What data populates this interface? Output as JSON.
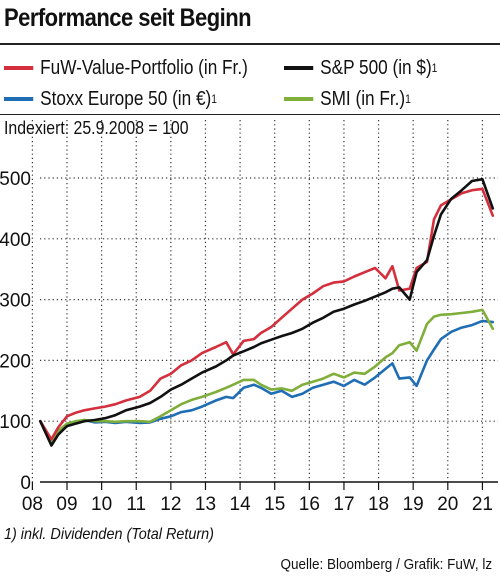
{
  "chart_data": {
    "type": "line",
    "title": "Performance seit Beginn",
    "subtitle": "Indexiert: 25.9.2008 = 100",
    "x_tick_labels": [
      "08",
      "09",
      "10",
      "11",
      "12",
      "13",
      "14",
      "15",
      "16",
      "17",
      "18",
      "19",
      "20",
      "21"
    ],
    "x_ticks": [
      2008.5,
      2009.5,
      2010.5,
      2011.5,
      2012.5,
      2013.5,
      2014.5,
      2015.5,
      2016.5,
      2017.5,
      2018.5,
      2019.5,
      2020.5,
      2021.5
    ],
    "xlim": [
      2008.72,
      2021.95
    ],
    "ylim": [
      0,
      500
    ],
    "y_ticks": [
      0,
      100,
      200,
      300,
      400,
      500
    ],
    "grid": "dotted",
    "footnote": "1) inkl. Dividenden (Total Return)",
    "source": "Quelle: Bloomberg / Grafik: FuW, lz",
    "series": [
      {
        "name": "Stoxx Europe 50 (in €)",
        "sup": "1",
        "color": "#1f6db5",
        "x": [
          2008.73,
          2009.05,
          2009.25,
          2009.5,
          2009.75,
          2010.0,
          2010.3,
          2010.6,
          2010.9,
          2011.2,
          2011.6,
          2011.9,
          2012.2,
          2012.5,
          2012.8,
          2013.1,
          2013.4,
          2013.8,
          2014.1,
          2014.3,
          2014.6,
          2014.9,
          2015.1,
          2015.4,
          2015.7,
          2016.0,
          2016.3,
          2016.6,
          2016.9,
          2017.2,
          2017.5,
          2017.8,
          2018.1,
          2018.4,
          2018.7,
          2018.9,
          2019.1,
          2019.4,
          2019.6,
          2019.9,
          2020.1,
          2020.3,
          2020.6,
          2020.9,
          2021.2,
          2021.5,
          2021.8
        ],
        "y": [
          100,
          62,
          82,
          95,
          99,
          102,
          98,
          99,
          97,
          99,
          97,
          98,
          104,
          108,
          115,
          118,
          124,
          134,
          140,
          138,
          155,
          160,
          155,
          145,
          150,
          140,
          145,
          155,
          160,
          165,
          158,
          168,
          160,
          172,
          186,
          195,
          170,
          172,
          158,
          200,
          218,
          235,
          247,
          254,
          258,
          265,
          263
        ]
      },
      {
        "name": "SMI (in Fr.)",
        "sup": "1",
        "color": "#7fae3a",
        "x": [
          2008.73,
          2009.05,
          2009.25,
          2009.5,
          2009.75,
          2010.0,
          2010.3,
          2010.6,
          2010.9,
          2011.2,
          2011.6,
          2011.9,
          2012.2,
          2012.5,
          2012.8,
          2013.1,
          2013.4,
          2013.8,
          2014.1,
          2014.3,
          2014.6,
          2014.9,
          2015.1,
          2015.4,
          2015.7,
          2016.0,
          2016.3,
          2016.6,
          2016.9,
          2017.2,
          2017.5,
          2017.8,
          2018.1,
          2018.4,
          2018.7,
          2018.9,
          2019.1,
          2019.4,
          2019.6,
          2019.9,
          2020.1,
          2020.3,
          2020.6,
          2020.9,
          2021.2,
          2021.5,
          2021.8
        ],
        "y": [
          100,
          68,
          84,
          96,
          100,
          102,
          100,
          100,
          99,
          100,
          100,
          99,
          108,
          118,
          128,
          135,
          140,
          148,
          155,
          160,
          168,
          168,
          160,
          152,
          154,
          150,
          160,
          165,
          170,
          178,
          172,
          180,
          178,
          190,
          205,
          212,
          225,
          230,
          216,
          260,
          272,
          275,
          276,
          278,
          280,
          283,
          252
        ]
      },
      {
        "name": "FuW-Value-Portfolio (in Fr.)",
        "sup": "",
        "color": "#d32f3c",
        "x": [
          2008.73,
          2009.05,
          2009.25,
          2009.5,
          2009.75,
          2010.0,
          2010.3,
          2010.6,
          2010.9,
          2011.2,
          2011.6,
          2011.9,
          2012.2,
          2012.5,
          2012.8,
          2013.1,
          2013.4,
          2013.8,
          2014.1,
          2014.3,
          2014.6,
          2014.9,
          2015.1,
          2015.4,
          2015.7,
          2016.0,
          2016.3,
          2016.6,
          2016.9,
          2017.2,
          2017.5,
          2017.8,
          2018.1,
          2018.4,
          2018.7,
          2018.9,
          2019.1,
          2019.4,
          2019.6,
          2019.9,
          2020.1,
          2020.3,
          2020.6,
          2020.9,
          2021.2,
          2021.5,
          2021.8
        ],
        "y": [
          100,
          70,
          90,
          108,
          114,
          118,
          121,
          124,
          128,
          134,
          140,
          150,
          170,
          178,
          192,
          200,
          212,
          222,
          230,
          210,
          232,
          235,
          245,
          255,
          270,
          285,
          300,
          310,
          322,
          328,
          330,
          338,
          345,
          352,
          335,
          355,
          315,
          318,
          352,
          362,
          432,
          455,
          465,
          475,
          480,
          482,
          438
        ]
      },
      {
        "name": "S&P 500 (in $)",
        "sup": "1",
        "color": "#111111",
        "x": [
          2008.73,
          2009.05,
          2009.25,
          2009.5,
          2009.75,
          2010.0,
          2010.3,
          2010.6,
          2010.9,
          2011.2,
          2011.6,
          2011.9,
          2012.2,
          2012.5,
          2012.8,
          2013.1,
          2013.4,
          2013.8,
          2014.1,
          2014.3,
          2014.6,
          2014.9,
          2015.1,
          2015.4,
          2015.7,
          2016.0,
          2016.3,
          2016.6,
          2016.9,
          2017.2,
          2017.5,
          2017.8,
          2018.1,
          2018.4,
          2018.7,
          2018.9,
          2019.1,
          2019.4,
          2019.6,
          2019.9,
          2020.1,
          2020.3,
          2020.6,
          2020.9,
          2021.2,
          2021.5,
          2021.8
        ],
        "y": [
          100,
          60,
          78,
          92,
          96,
          100,
          102,
          105,
          110,
          118,
          124,
          130,
          140,
          152,
          160,
          170,
          180,
          190,
          200,
          208,
          215,
          222,
          228,
          234,
          240,
          245,
          252,
          262,
          270,
          280,
          285,
          292,
          298,
          305,
          312,
          318,
          320,
          300,
          345,
          365,
          405,
          440,
          466,
          480,
          495,
          498,
          450
        ]
      }
    ]
  }
}
